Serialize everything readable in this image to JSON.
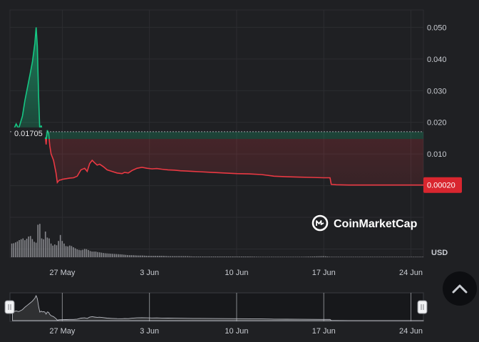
{
  "chart_data": {
    "type": "area",
    "currency_label": "USD",
    "watermark": "CoinMarketCap",
    "x_tick_labels": [
      "27 May",
      "3 Jun",
      "10 Jun",
      "17 Jun",
      "24 Jun"
    ],
    "x_ticks_day": [
      4,
      11,
      18,
      25,
      32
    ],
    "y_tick_labels": [
      "0.050",
      "0.040",
      "0.030",
      "0.020",
      "0.010"
    ],
    "y_ticks": [
      0.05,
      0.04,
      0.03,
      0.02,
      0.01
    ],
    "ylim": [
      -0.0226,
      0.0555
    ],
    "xlim_day": [
      -0.2,
      33.0
    ],
    "reference_price": 0.01705,
    "reference_label": "0.01705",
    "current_price": 0.0002,
    "current_price_label": "0.00020",
    "colors": {
      "up": "#16c784",
      "down": "#ea3943",
      "volume": "#9a9ba0",
      "grid": "#2c2d31",
      "badge": "#d9262f"
    },
    "series": {
      "x_day": [
        0.0,
        0.3,
        0.5,
        0.8,
        1.0,
        1.2,
        1.4,
        1.6,
        1.8,
        1.9,
        2.0,
        2.1,
        2.2,
        2.3,
        2.4,
        2.5,
        2.6,
        2.7,
        2.8,
        2.9,
        3.0,
        3.1,
        3.3,
        3.5,
        3.6,
        3.7,
        3.8,
        3.9,
        4.0,
        4.3,
        4.6,
        4.9,
        5.2,
        5.5,
        5.8,
        6.0,
        6.2,
        6.4,
        6.6,
        6.8,
        7.0,
        7.3,
        7.6,
        8.0,
        8.4,
        8.8,
        9.0,
        9.3,
        9.6,
        10.0,
        10.4,
        10.8,
        11.2,
        11.6,
        12.0,
        12.5,
        13.0,
        13.5,
        14.0,
        14.5,
        15.0,
        16.0,
        17.0,
        18.0,
        19.0,
        20.0,
        21.0,
        22.0,
        23.0,
        24.0,
        25.0,
        25.5,
        25.6,
        26.0,
        27.0,
        28.0,
        29.0,
        30.0,
        31.0,
        32.0,
        33.0
      ],
      "price": [
        0.017,
        0.0195,
        0.018,
        0.022,
        0.027,
        0.031,
        0.035,
        0.039,
        0.045,
        0.05,
        0.044,
        0.028,
        0.017,
        0.019,
        0.0175,
        0.018,
        0.0172,
        0.013,
        0.0175,
        0.0165,
        0.0125,
        0.01,
        0.008,
        0.004,
        0.001,
        0.0015,
        0.0018,
        0.0018,
        0.002,
        0.0022,
        0.0024,
        0.0025,
        0.003,
        0.005,
        0.0055,
        0.0045,
        0.007,
        0.008,
        0.0072,
        0.0065,
        0.0068,
        0.006,
        0.005,
        0.0045,
        0.004,
        0.0038,
        0.0042,
        0.004,
        0.0048,
        0.0055,
        0.0058,
        0.0055,
        0.0053,
        0.0054,
        0.0052,
        0.005,
        0.0049,
        0.0047,
        0.0046,
        0.0045,
        0.0044,
        0.0042,
        0.004,
        0.0038,
        0.0037,
        0.0035,
        0.003,
        0.0028,
        0.0027,
        0.0026,
        0.0025,
        0.0025,
        0.0004,
        0.0003,
        0.0002,
        0.0002,
        0.0002,
        0.0002,
        0.0002,
        0.0002,
        0.0002
      ],
      "volume": [
        0.4,
        0.45,
        0.5,
        0.55,
        0.48,
        0.6,
        0.62,
        0.5,
        0.4,
        0.45,
        0.95,
        1.0,
        0.95,
        0.55,
        0.7,
        0.35,
        0.75,
        0.45,
        0.7,
        0.55,
        0.5,
        0.3,
        0.38,
        0.35,
        0.4,
        0.55,
        0.65,
        0.5,
        0.45,
        0.3,
        0.35,
        0.28,
        0.22,
        0.2,
        0.25,
        0.22,
        0.18,
        0.16,
        0.17,
        0.15,
        0.14,
        0.12,
        0.11,
        0.1,
        0.09,
        0.08,
        0.07,
        0.06,
        0.06,
        0.05,
        0.05,
        0.04,
        0.04,
        0.04,
        0.04,
        0.03,
        0.03,
        0.03,
        0.03,
        0.02,
        0.02,
        0.02,
        0.02,
        0.02,
        0.02,
        0.01,
        0.01,
        0.01,
        0.01,
        0.02,
        0.03,
        0.01,
        0.01,
        0.01,
        0.01,
        0.01,
        0.01,
        0.01,
        0.01,
        0.01,
        0.01
      ]
    }
  },
  "navigator_labels": [
    "27 May",
    "3 Jun",
    "10 Jun",
    "17 Jun",
    "24 Jun"
  ]
}
